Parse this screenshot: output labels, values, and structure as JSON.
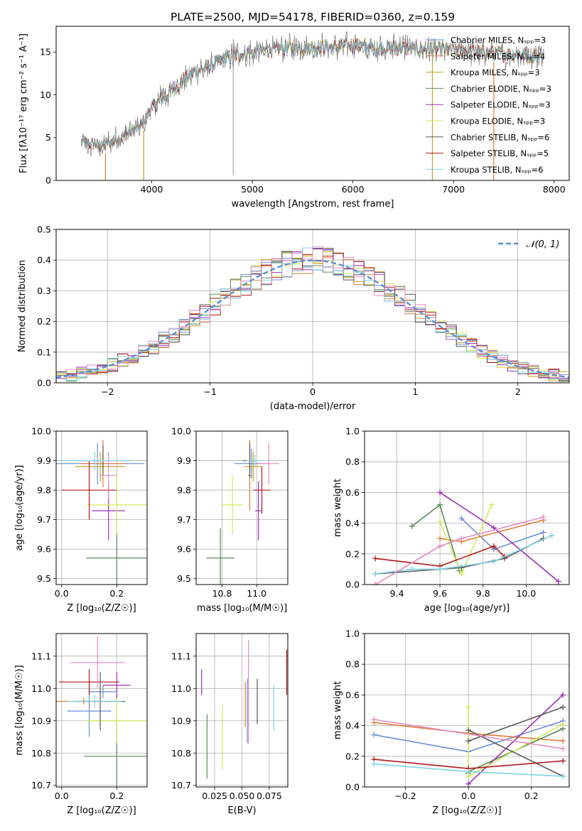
{
  "figure_title": "PLATE=2500, MJD=54178, FIBERID=0360, z=0.159",
  "colors": {
    "Chabrier MILES": "#6b8fd6",
    "Salpeter MILES": "#e07b39",
    "Kroupa MILES": "#c9a227",
    "Chabrier ELODIE": "#5a8a5a",
    "Salpeter ELODIE": "#9b2fb5",
    "Kroupa ELODIE": "#d4ea5a",
    "Chabrier STELIB": "#5a5a5a",
    "Salpeter STELIB": "#b11b1b",
    "Kroupa STELIB": "#7fd3e0",
    "pink": "#e58bc0",
    "gaussian": "#5b8fd6"
  },
  "chart_data": [
    {
      "id": "spectrum",
      "type": "line",
      "title": "PLATE=2500, MJD=54178, FIBERID=0360, z=0.159",
      "xlabel": "wavelength [Angstrom, rest frame]",
      "ylabel": "Flux [fλ10⁻¹⁷ erg cm⁻² s⁻¹ A⁻¹]",
      "xlim": [
        3050,
        8150
      ],
      "ylim": [
        0,
        18
      ],
      "xticks": [
        "4000",
        "5000",
        "6000",
        "7000",
        "8000"
      ],
      "yticks": [
        "0",
        "5",
        "10",
        "15"
      ],
      "legend_position": "top-right",
      "legend": [
        "Chabrier MILES, Nₛₚₚ=3",
        "Salpeter MILES, Nₛₚₚ=4",
        "Kroupa MILES, Nₛₚₚ=3",
        "Chabrier ELODIE, Nₛₚₚ=3",
        "Salpeter ELODIE, Nₛₚₚ=3",
        "Kroupa ELODIE, Nₛₚₚ=3",
        "Chabrier STELIB, Nₛₚₚ=6",
        "Salpeter STELIB, Nₛₚₚ=5",
        "Kroupa STELIB, Nₛₚₚ=6"
      ],
      "continuum_x": [
        3300,
        3500,
        3700,
        3900,
        4000,
        4200,
        4400,
        4600,
        4800,
        5000,
        5200,
        5400,
        5600,
        5800,
        6000,
        6200,
        6400,
        6600,
        6800,
        7000,
        7200,
        7400,
        7600,
        7800
      ],
      "continuum_y": [
        4.5,
        4.0,
        5.0,
        6.5,
        8.5,
        10.5,
        12.5,
        13.5,
        14.5,
        15.0,
        15.3,
        15.5,
        15.6,
        15.6,
        15.8,
        15.5,
        15.5,
        15.4,
        15.3,
        15.2,
        15.0,
        14.8,
        14.7,
        14.6
      ]
    },
    {
      "id": "residuals",
      "type": "bar",
      "xlabel": "(data-model)/error",
      "ylabel": "Normed distribution",
      "xlim": [
        -2.5,
        2.5
      ],
      "ylim": [
        0,
        0.5
      ],
      "xticks": [
        "−2",
        "−1",
        "0",
        "1",
        "2"
      ],
      "yticks": [
        "0.0",
        "0.1",
        "0.2",
        "0.3",
        "0.4",
        "0.5"
      ],
      "legend_position": "top-right",
      "gaussian_label": "𝒩(0, 1)",
      "bin_width": 0.1
    },
    {
      "id": "age_vs_Z",
      "type": "scatter",
      "xlabel": "Z [log₁₀(Z/Z☉)]",
      "ylabel": "age  [log₁₀(age/yr)]",
      "xlim": [
        -0.02,
        0.31
      ],
      "ylim": [
        9.48,
        10.0
      ],
      "xticks": [
        "0.0",
        "0.2"
      ],
      "yticks": [
        "9.5",
        "9.6",
        "9.7",
        "9.8",
        "9.9",
        "10.0"
      ],
      "points": [
        {
          "x": 0.13,
          "y": 9.89,
          "xerr": 0.17,
          "yerr": 0.07,
          "c": "Chabrier MILES"
        },
        {
          "x": 0.15,
          "y": 9.89,
          "xerr": 0.08,
          "yerr": 0.08,
          "c": "Salpeter MILES"
        },
        {
          "x": 0.14,
          "y": 9.88,
          "xerr": 0.09,
          "yerr": 0.05,
          "c": "Kroupa MILES"
        },
        {
          "x": 0.2,
          "y": 9.57,
          "xerr": 0.11,
          "yerr": 0.09,
          "c": "Chabrier ELODIE"
        },
        {
          "x": 0.17,
          "y": 9.73,
          "xerr": 0.06,
          "yerr": 0.1,
          "c": "Salpeter ELODIE"
        },
        {
          "x": 0.2,
          "y": 9.75,
          "xerr": 0.11,
          "yerr": 0.1,
          "c": "Kroupa ELODIE"
        },
        {
          "x": 0.15,
          "y": 9.9,
          "xerr": 0.1,
          "yerr": 0.05,
          "c": "Chabrier STELIB"
        },
        {
          "x": 0.1,
          "y": 9.8,
          "xerr": 0.1,
          "yerr": 0.1,
          "c": "Salpeter STELIB"
        },
        {
          "x": 0.12,
          "y": 9.9,
          "xerr": 0.13,
          "yerr": 0.03,
          "c": "Kroupa STELIB"
        },
        {
          "x": 0.17,
          "y": 9.85,
          "xerr": 0.03,
          "yerr": 0.08,
          "c": "pink"
        }
      ]
    },
    {
      "id": "age_vs_mass",
      "type": "scatter",
      "xlabel": "mass [log₁₀(M/M☉)]",
      "ylabel": "",
      "xlim": [
        10.65,
        11.18
      ],
      "ylim": [
        9.48,
        10.0
      ],
      "xticks": [
        "10.8",
        "11.0"
      ],
      "yticks": [
        "9.5",
        "9.6",
        "9.7",
        "9.8",
        "9.9",
        "10.0"
      ],
      "points": [
        {
          "x": 10.97,
          "y": 9.89,
          "xerr": 0.1,
          "yerr": 0.05,
          "c": "Chabrier MILES"
        },
        {
          "x": 10.96,
          "y": 9.85,
          "xerr": 0.01,
          "yerr": 0.12,
          "c": "Salpeter MILES"
        },
        {
          "x": 10.98,
          "y": 9.88,
          "xerr": 0.05,
          "yerr": 0.05,
          "c": "Kroupa MILES"
        },
        {
          "x": 10.79,
          "y": 9.57,
          "xerr": 0.08,
          "yerr": 0.1,
          "c": "Chabrier ELODIE"
        },
        {
          "x": 11.01,
          "y": 9.73,
          "xerr": 0.02,
          "yerr": 0.1,
          "c": "Salpeter ELODIE"
        },
        {
          "x": 10.86,
          "y": 9.75,
          "xerr": 0.06,
          "yerr": 0.1,
          "c": "Kroupa ELODIE"
        },
        {
          "x": 10.96,
          "y": 9.9,
          "xerr": 0.04,
          "yerr": 0.06,
          "c": "Chabrier STELIB"
        },
        {
          "x": 11.03,
          "y": 9.8,
          "xerr": 0.05,
          "yerr": 0.08,
          "c": "Salpeter STELIB"
        },
        {
          "x": 10.99,
          "y": 9.9,
          "xerr": 0.05,
          "yerr": 0.02,
          "c": "Kroupa STELIB"
        },
        {
          "x": 11.07,
          "y": 9.89,
          "xerr": 0.06,
          "yerr": 0.07,
          "c": "pink"
        }
      ]
    },
    {
      "id": "weight_vs_age",
      "type": "line",
      "xlabel": "age  [log₁₀(age/yr)]",
      "ylabel": "mass weight",
      "xlim": [
        9.25,
        10.2
      ],
      "ylim": [
        0,
        1
      ],
      "xticks": [
        "9.4",
        "9.6",
        "9.8",
        "10.0"
      ],
      "yticks": [
        "0.0",
        "0.2",
        "0.4",
        "0.6",
        "0.8",
        "1.0"
      ],
      "series": [
        {
          "c": "Chabrier MILES",
          "x": [
            9.7,
            9.85,
            10.08
          ],
          "y": [
            0.43,
            0.23,
            0.34
          ]
        },
        {
          "c": "Salpeter MILES",
          "x": [
            9.6,
            9.7,
            10.08
          ],
          "y": [
            0.3,
            0.28,
            0.42
          ]
        },
        {
          "c": "Chabrier ELODIE",
          "x": [
            9.47,
            9.6,
            9.69
          ],
          "y": [
            0.38,
            0.52,
            0.09
          ]
        },
        {
          "c": "Salpeter ELODIE",
          "x": [
            9.6,
            9.85,
            10.15
          ],
          "y": [
            0.6,
            0.37,
            0.02
          ]
        },
        {
          "c": "Kroupa ELODIE",
          "x": [
            9.6,
            9.7,
            9.84
          ],
          "y": [
            0.41,
            0.07,
            0.52
          ]
        },
        {
          "c": "Chabrier STELIB",
          "x": [
            9.3,
            9.6,
            9.7,
            9.9,
            10.08
          ],
          "y": [
            0.07,
            0.1,
            0.11,
            0.17,
            0.3
          ]
        },
        {
          "c": "Salpeter STELIB",
          "x": [
            9.3,
            9.6,
            9.85,
            9.9
          ],
          "y": [
            0.17,
            0.12,
            0.25,
            0.18
          ]
        },
        {
          "c": "Kroupa STELIB",
          "x": [
            9.3,
            9.47,
            9.6,
            9.85,
            10.12
          ],
          "y": [
            0.07,
            0.1,
            0.1,
            0.15,
            0.32
          ]
        },
        {
          "c": "pink",
          "x": [
            9.3,
            9.6,
            9.7,
            10.08
          ],
          "y": [
            0.0,
            0.25,
            0.3,
            0.44
          ]
        }
      ]
    },
    {
      "id": "mass_vs_Z",
      "type": "scatter",
      "xlabel": "Z [log₁₀(Z/Z☉)]",
      "ylabel": "mass [log₁₀(M/M☉)]",
      "xlim": [
        -0.02,
        0.31
      ],
      "ylim": [
        10.695,
        11.17
      ],
      "xticks": [
        "0.0",
        "0.2"
      ],
      "yticks": [
        "10.7",
        "10.8",
        "10.9",
        "11.0",
        "11.1"
      ],
      "points": [
        {
          "x": 0.15,
          "y": 10.99,
          "xerr": 0.05,
          "yerr": 0.02,
          "c": "Chabrier MILES"
        },
        {
          "x": 0.08,
          "y": 10.96,
          "xerr": 0.1,
          "yerr": 0.01,
          "c": "Salpeter MILES"
        },
        {
          "x": 0.1,
          "y": 10.93,
          "xerr": 0.08,
          "yerr": 0.08,
          "c": "Chabrier MILES"
        },
        {
          "x": 0.2,
          "y": 10.79,
          "xerr": 0.12,
          "yerr": 0.12,
          "c": "Chabrier ELODIE"
        },
        {
          "x": 0.2,
          "y": 11.01,
          "xerr": 0.05,
          "yerr": 0.04,
          "c": "Salpeter ELODIE"
        },
        {
          "x": 0.2,
          "y": 10.9,
          "xerr": 0.11,
          "yerr": 0.07,
          "c": "Kroupa ELODIE"
        },
        {
          "x": 0.14,
          "y": 10.96,
          "xerr": 0.09,
          "yerr": 0.09,
          "c": "Chabrier STELIB"
        },
        {
          "x": 0.1,
          "y": 11.02,
          "xerr": 0.11,
          "yerr": 0.04,
          "c": "Salpeter STELIB"
        },
        {
          "x": 0.12,
          "y": 10.96,
          "xerr": 0.1,
          "yerr": 0.02,
          "c": "Kroupa STELIB"
        },
        {
          "x": 0.13,
          "y": 11.08,
          "xerr": 0.1,
          "yerr": 0.08,
          "c": "pink"
        }
      ]
    },
    {
      "id": "mass_vs_ebv",
      "type": "scatter",
      "xlabel": "E(B-V)",
      "ylabel": "",
      "xlim": [
        0.008,
        0.092
      ],
      "ylim": [
        10.695,
        11.17
      ],
      "xticks": [
        "0.025",
        "0.050",
        "0.075"
      ],
      "yticks": [
        "10.7",
        "10.8",
        "10.9",
        "11.0",
        "11.1"
      ],
      "points": [
        {
          "x": 0.013,
          "y": 11.02,
          "xerr": 0.0,
          "yerr": 0.04,
          "c": "Salpeter ELODIE"
        },
        {
          "x": 0.018,
          "y": 10.82,
          "xerr": 0.0,
          "yerr": 0.1,
          "c": "Chabrier ELODIE"
        },
        {
          "x": 0.032,
          "y": 10.85,
          "xerr": 0.0,
          "yerr": 0.1,
          "c": "Kroupa ELODIE"
        },
        {
          "x": 0.053,
          "y": 10.95,
          "xerr": 0.0,
          "yerr": 0.07,
          "c": "Salpeter MILES"
        },
        {
          "x": 0.056,
          "y": 10.99,
          "xerr": 0.0,
          "yerr": 0.16,
          "c": "pink"
        },
        {
          "x": 0.055,
          "y": 10.93,
          "xerr": 0.0,
          "yerr": 0.1,
          "c": "Chabrier MILES"
        },
        {
          "x": 0.064,
          "y": 10.96,
          "xerr": 0.0,
          "yerr": 0.07,
          "c": "Chabrier STELIB"
        },
        {
          "x": 0.079,
          "y": 10.94,
          "xerr": 0.0,
          "yerr": 0.07,
          "c": "Kroupa STELIB"
        },
        {
          "x": 0.091,
          "y": 11.05,
          "xerr": 0.0,
          "yerr": 0.07,
          "c": "Salpeter STELIB"
        }
      ]
    },
    {
      "id": "weight_vs_Z",
      "type": "line",
      "xlabel": "Z [log₁₀(Z/Z☉)]",
      "ylabel": "mass weight",
      "xlim": [
        -0.33,
        0.32
      ],
      "ylim": [
        0,
        1
      ],
      "xticks": [
        "−0.2",
        "0.0",
        "0.2"
      ],
      "yticks": [
        "0.0",
        "0.2",
        "0.4",
        "0.6",
        "0.8",
        "1.0"
      ],
      "series": [
        {
          "c": "Chabrier MILES",
          "x": [
            -0.3,
            0.0,
            0.3
          ],
          "y": [
            0.34,
            0.23,
            0.43
          ]
        },
        {
          "c": "Salpeter MILES",
          "x": [
            -0.3,
            0.0,
            0.3
          ],
          "y": [
            0.42,
            0.35,
            0.3
          ]
        },
        {
          "c": "Chabrier ELODIE",
          "x": [
            0.0,
            0.0,
            0.3
          ],
          "y": [
            0.09,
            0.1,
            0.38
          ]
        },
        {
          "c": "Salpeter ELODIE",
          "x": [
            0.0,
            0.3
          ],
          "y": [
            0.02,
            0.6
          ]
        },
        {
          "c": "Kroupa ELODIE",
          "x": [
            0.0,
            0.0,
            0.3
          ],
          "y": [
            0.52,
            0.07,
            0.41
          ]
        },
        {
          "c": "Chabrier STELIB",
          "x": [
            0.0,
            0.3
          ],
          "y": [
            0.37,
            0.07
          ]
        },
        {
          "c": "Salpeter STELIB",
          "x": [
            -0.3,
            0.0,
            0.3
          ],
          "y": [
            0.18,
            0.12,
            0.17
          ]
        },
        {
          "c": "Kroupa STELIB",
          "x": [
            -0.3,
            0.0,
            0.3
          ],
          "y": [
            0.15,
            0.1,
            0.07
          ]
        },
        {
          "c": "Chabrier STELIB",
          "x": [
            0.0,
            0.3
          ],
          "y": [
            0.3,
            0.52
          ]
        },
        {
          "c": "pink",
          "x": [
            -0.3,
            0.3
          ],
          "y": [
            0.44,
            0.25
          ]
        }
      ]
    }
  ]
}
